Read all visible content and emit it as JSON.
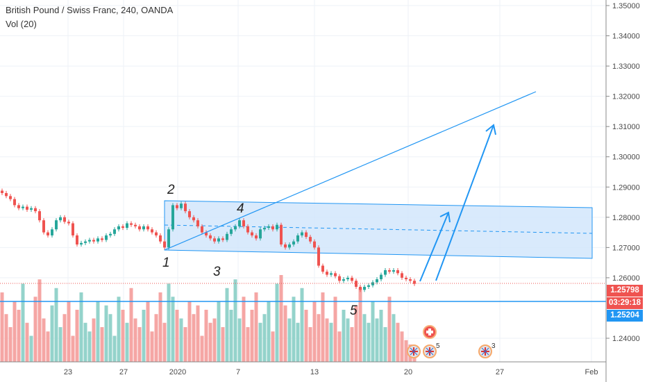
{
  "legend": {
    "title": "British Pound / Swiss Franc, 240, OANDA",
    "volume": "Vol (20)"
  },
  "price_tags": {
    "last_price": "1.25798",
    "countdown": "03:29:18",
    "support_line": "1.25204"
  },
  "colors": {
    "up": "#26a69a",
    "down": "#ef5350",
    "vol_up": "#94d3cb",
    "vol_down": "#f5a6a4",
    "drawing": "#2196f3",
    "channel_fill": "#cfe5fb"
  },
  "wave_labels": [
    "1",
    "2",
    "3",
    "4",
    "5"
  ],
  "events": [
    {
      "icon": "uk-flag-icon",
      "count": ""
    },
    {
      "icon": "swiss-flag-icon",
      "count": ""
    },
    {
      "icon": "uk-flag-icon",
      "count": "5"
    },
    {
      "icon": "uk-flag-icon",
      "count": "3"
    }
  ],
  "chart_data": {
    "type": "candlestick",
    "title": "British Pound / Swiss Franc, 240, OANDA",
    "y_ticks": [
      "1.35000",
      "1.34000",
      "1.33000",
      "1.32000",
      "1.31000",
      "1.30000",
      "1.29000",
      "1.28000",
      "1.27000",
      "1.26000",
      "1.24000"
    ],
    "y_tick_values": [
      1.35,
      1.34,
      1.33,
      1.32,
      1.31,
      1.3,
      1.29,
      1.28,
      1.27,
      1.26,
      1.24
    ],
    "ylim": [
      1.24,
      1.35
    ],
    "x_ticks": [
      "23",
      "27",
      "2020",
      "7",
      "13",
      "20",
      "27",
      "Feb"
    ],
    "closes": [
      1.288,
      1.287,
      1.286,
      1.284,
      1.283,
      1.2835,
      1.2825,
      1.283,
      1.282,
      1.279,
      1.275,
      1.274,
      1.276,
      1.279,
      1.28,
      1.2785,
      1.278,
      1.274,
      1.271,
      1.2715,
      1.272,
      1.2725,
      1.272,
      1.273,
      1.2725,
      1.274,
      1.2745,
      1.276,
      1.277,
      1.2765,
      1.278,
      1.2775,
      1.277,
      1.276,
      1.277,
      1.276,
      1.275,
      1.274,
      1.272,
      1.27,
      1.276,
      1.284,
      1.283,
      1.2845,
      1.282,
      1.28,
      1.279,
      1.277,
      1.275,
      1.274,
      1.273,
      1.272,
      1.273,
      1.2725,
      1.2745,
      1.276,
      1.277,
      1.279,
      1.277,
      1.275,
      1.274,
      1.273,
      1.276,
      1.2765,
      1.277,
      1.276,
      1.2775,
      1.271,
      1.27,
      1.271,
      1.272,
      1.274,
      1.275,
      1.2735,
      1.272,
      1.27,
      1.264,
      1.262,
      1.261,
      1.2615,
      1.2605,
      1.259,
      1.2595,
      1.26,
      1.259,
      1.257,
      1.256,
      1.257,
      1.2575,
      1.2585,
      1.2595,
      1.261,
      1.2625,
      1.262,
      1.2625,
      1.2615,
      1.26,
      1.2595,
      1.259,
      1.25798
    ],
    "volumes": [
      80,
      55,
      40,
      70,
      60,
      90,
      45,
      30,
      75,
      95,
      50,
      35,
      65,
      85,
      40,
      55,
      70,
      30,
      60,
      80,
      45,
      35,
      50,
      70,
      40,
      65,
      55,
      30,
      75,
      60,
      45,
      85,
      50,
      40,
      60,
      70,
      35,
      55,
      80,
      45,
      90,
      75,
      60,
      50,
      40,
      70,
      55,
      65,
      30,
      60,
      45,
      50,
      70,
      40,
      85,
      60,
      95,
      50,
      75,
      40,
      60,
      80,
      45,
      55,
      70,
      35,
      90,
      100,
      65,
      50,
      75,
      45,
      85,
      60,
      40,
      70,
      55,
      80,
      50,
      45,
      75,
      35,
      60,
      50,
      40,
      65,
      85,
      55,
      45,
      70,
      50,
      60,
      40,
      75,
      55,
      45,
      35,
      25,
      20,
      15
    ],
    "support_price": 1.25204,
    "last_price": 1.25798
  }
}
